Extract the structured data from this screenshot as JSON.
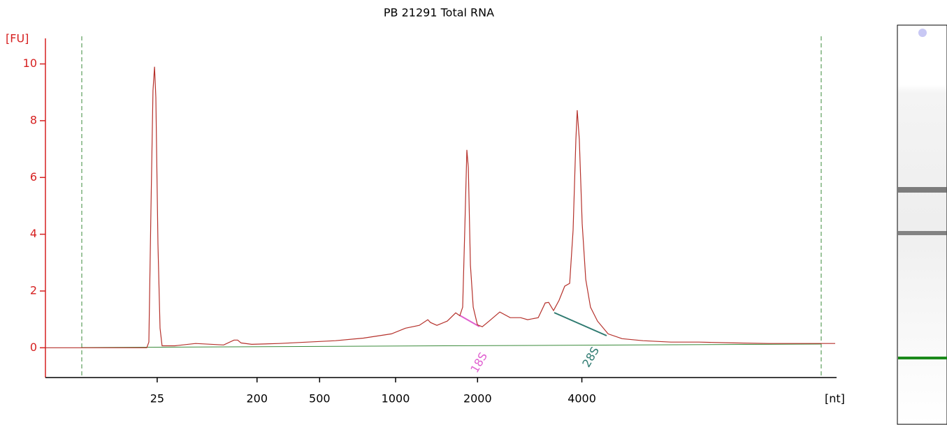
{
  "chart_data": {
    "type": "line",
    "title": "PB 21291 Total RNA",
    "y_label": "[FU]",
    "x_label": "[nt]",
    "xlim": [
      17,
      70
    ],
    "ylim": [
      -1,
      10.9
    ],
    "xticks": [
      {
        "value": 24.5,
        "label": "25"
      },
      {
        "value": 31.2,
        "label": "200"
      },
      {
        "value": 35.4,
        "label": "500"
      },
      {
        "value": 40.5,
        "label": "1000"
      },
      {
        "value": 46.0,
        "label": "2000"
      },
      {
        "value": 53.0,
        "label": "4000"
      }
    ],
    "yticks": [
      0,
      2,
      4,
      6,
      8,
      10
    ],
    "series": [
      {
        "name": "PB 21291 Total RNA",
        "color": "#b5312b",
        "x": [
          17.0,
          19.44,
          22.39,
          23.8,
          23.94,
          24.08,
          24.22,
          24.32,
          24.41,
          24.55,
          24.69,
          24.83,
          25.68,
          27.08,
          28.96,
          29.66,
          29.9,
          30.13,
          30.84,
          32.71,
          34.59,
          36.47,
          38.34,
          40.22,
          41.16,
          42.09,
          42.66,
          42.84,
          43.27,
          43.97,
          44.53,
          44.81,
          45.0,
          45.14,
          45.28,
          45.38,
          45.52,
          45.71,
          45.99,
          46.32,
          46.78,
          47.49,
          48.19,
          48.89,
          49.36,
          50.07,
          50.54,
          50.77,
          51.1,
          51.47,
          51.85,
          52.18,
          52.41,
          52.6,
          52.69,
          52.83,
          53.02,
          53.26,
          53.58,
          54.05,
          54.76,
          55.7,
          57.1,
          58.98,
          60.86,
          63.2,
          65.55,
          67.89,
          70.0
        ],
        "values": [
          0,
          0,
          0,
          0,
          0.2,
          4.88,
          9.06,
          9.9,
          8.82,
          3.65,
          0.69,
          0.07,
          0.07,
          0.15,
          0.1,
          0.27,
          0.27,
          0.17,
          0.12,
          0.15,
          0.2,
          0.25,
          0.34,
          0.49,
          0.69,
          0.79,
          0.99,
          0.89,
          0.79,
          0.94,
          1.23,
          1.13,
          1.43,
          4.14,
          6.97,
          6.35,
          2.91,
          1.43,
          0.81,
          0.74,
          0.94,
          1.26,
          1.06,
          1.06,
          0.99,
          1.06,
          1.58,
          1.6,
          1.31,
          1.67,
          2.17,
          2.27,
          4.14,
          7.34,
          8.37,
          7.34,
          4.38,
          2.41,
          1.43,
          0.94,
          0.49,
          0.32,
          0.25,
          0.2,
          0.2,
          0.17,
          0.15,
          0.15,
          0.15
        ]
      }
    ],
    "annotations": [
      "18S",
      "28S"
    ]
  }
}
